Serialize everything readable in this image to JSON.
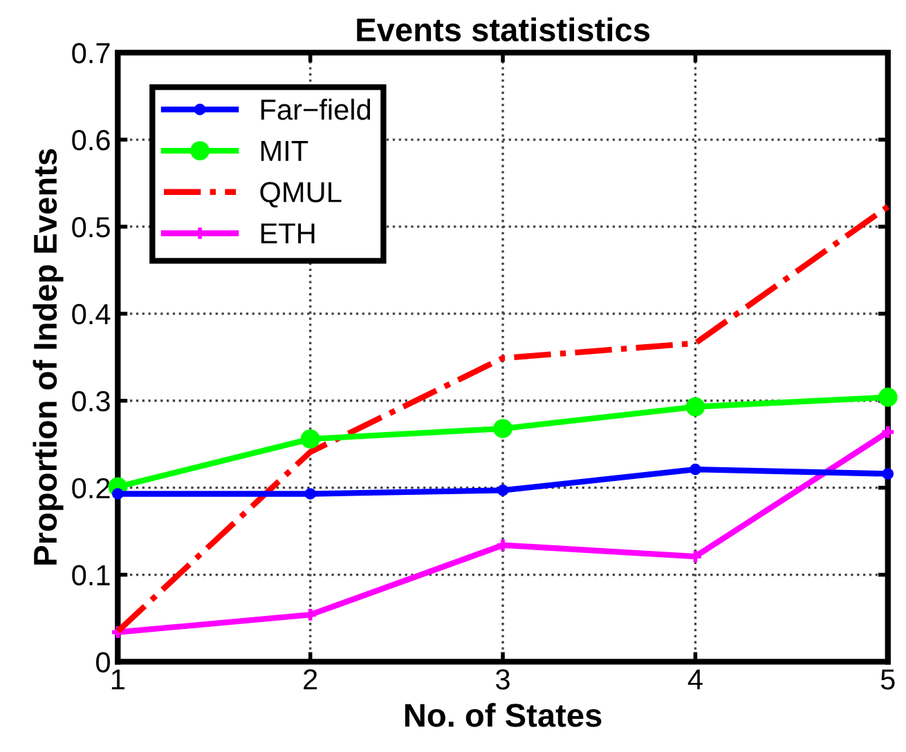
{
  "chart_data": {
    "type": "line",
    "title": "Events statististics",
    "xlabel": "No. of States",
    "ylabel": "Proportion of Indep Events",
    "x": [
      1,
      2,
      3,
      4,
      5
    ],
    "series": [
      {
        "name": "Far−field",
        "color": "#0000ff",
        "marker": "circle",
        "line_style": "solid",
        "values": [
          0.193,
          0.193,
          0.197,
          0.221,
          0.216
        ]
      },
      {
        "name": "MIT",
        "color": "#00ff00",
        "marker": "circle",
        "line_style": "solid",
        "values": [
          0.201,
          0.256,
          0.268,
          0.293,
          0.304
        ]
      },
      {
        "name": "QMUL",
        "color": "#ff0000",
        "marker": "none",
        "line_style": "dashdot",
        "values": [
          0.035,
          0.241,
          0.349,
          0.366,
          0.523
        ]
      },
      {
        "name": "ETH",
        "color": "#ff00ff",
        "marker": "cross",
        "line_style": "solid",
        "values": [
          0.034,
          0.054,
          0.134,
          0.121,
          0.264
        ]
      }
    ],
    "xlim": [
      1,
      5
    ],
    "xticks": [
      1,
      2,
      3,
      4,
      5
    ],
    "ylim": [
      0,
      0.7
    ],
    "yticks": [
      0,
      0.1,
      0.2,
      0.3,
      0.4,
      0.5,
      0.6,
      0.7
    ],
    "grid": true,
    "legend": "top left"
  }
}
